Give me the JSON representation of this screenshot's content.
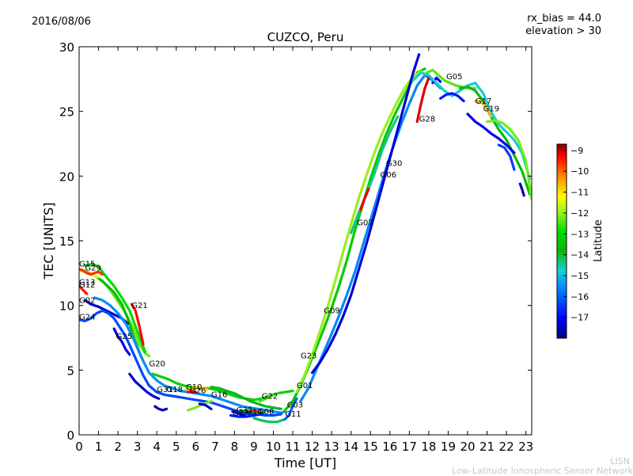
{
  "header": {
    "date": "2016/08/06",
    "bias": "rx_bias = 44.0",
    "elevation": "elevation > 30"
  },
  "footer": {
    "abbr": "LISN",
    "network": "Low-Latitude Ionospheric Sensor Network"
  },
  "colors": {
    "colormap": [
      "#00007f",
      "#0000ff",
      "#0080ff",
      "#16d2d2",
      "#0bb40b",
      "#00e000",
      "#a0f020",
      "#ffff00",
      "#ff8000",
      "#ff0000",
      "#7f0000"
    ]
  },
  "chart_data": {
    "type": "scatter",
    "title": "CUZCO, Peru",
    "xlabel": "Time [UT]",
    "ylabel": "TEC [UNITS]",
    "xlim": [
      0,
      23.3
    ],
    "ylim": [
      0,
      30
    ],
    "xticks": [
      "0",
      "1",
      "2",
      "3",
      "4",
      "5",
      "6",
      "7",
      "8",
      "9",
      "10",
      "11",
      "12",
      "13",
      "14",
      "15",
      "16",
      "17",
      "18",
      "19",
      "20",
      "21",
      "22",
      "23"
    ],
    "yticks": [
      "0",
      "5",
      "10",
      "15",
      "20",
      "25",
      "30"
    ],
    "colorbar": {
      "label": "Latitude",
      "range": [
        -18,
        -8.7
      ],
      "ticks": [
        "−9",
        "−10",
        "−11",
        "−12",
        "−13",
        "−14",
        "−15",
        "−16",
        "−17"
      ]
    },
    "satellite_labels": [
      {
        "text": "G15",
        "x": 0.0,
        "y": 13.0
      },
      {
        "text": "G29",
        "x": 0.3,
        "y": 12.7
      },
      {
        "text": "G13",
        "x": 0.0,
        "y": 11.6
      },
      {
        "text": "G12",
        "x": 0.0,
        "y": 11.4
      },
      {
        "text": "G02",
        "x": 0.0,
        "y": 10.2
      },
      {
        "text": "G24",
        "x": 0.0,
        "y": 8.9
      },
      {
        "text": "G25",
        "x": 1.9,
        "y": 7.4
      },
      {
        "text": "G21",
        "x": 2.7,
        "y": 9.8
      },
      {
        "text": "G20",
        "x": 3.6,
        "y": 5.3
      },
      {
        "text": "G31",
        "x": 4.0,
        "y": 3.3
      },
      {
        "text": "G18",
        "x": 4.5,
        "y": 3.3
      },
      {
        "text": "G26",
        "x": 5.7,
        "y": 3.2
      },
      {
        "text": "G10",
        "x": 5.5,
        "y": 3.5
      },
      {
        "text": "G16",
        "x": 6.8,
        "y": 2.9
      },
      {
        "text": "G27",
        "x": 7.9,
        "y": 1.5
      },
      {
        "text": "G32",
        "x": 8.1,
        "y": 1.7
      },
      {
        "text": "G14",
        "x": 8.6,
        "y": 1.6
      },
      {
        "text": "G08",
        "x": 9.2,
        "y": 1.6
      },
      {
        "text": "G22",
        "x": 9.4,
        "y": 2.8
      },
      {
        "text": "G11",
        "x": 10.6,
        "y": 1.4
      },
      {
        "text": "G03",
        "x": 10.7,
        "y": 2.1
      },
      {
        "text": "G01",
        "x": 11.2,
        "y": 3.6
      },
      {
        "text": "G23",
        "x": 11.4,
        "y": 5.9
      },
      {
        "text": "G09",
        "x": 12.6,
        "y": 9.4
      },
      {
        "text": "G07",
        "x": 14.3,
        "y": 16.2
      },
      {
        "text": "G06",
        "x": 15.5,
        "y": 19.9
      },
      {
        "text": "G30",
        "x": 15.8,
        "y": 20.8
      },
      {
        "text": "G28",
        "x": 17.5,
        "y": 24.2
      },
      {
        "text": "G05",
        "x": 18.9,
        "y": 27.5
      },
      {
        "text": "G17",
        "x": 20.4,
        "y": 25.6
      },
      {
        "text": "G19",
        "x": 20.8,
        "y": 25.0
      }
    ],
    "series": [
      {
        "lat": -12.3,
        "x": [
          0.0,
          0.4,
          0.8,
          1.2,
          1.6,
          2.0,
          2.4,
          2.8,
          3.1,
          3.4,
          3.6
        ],
        "y": [
          12.8,
          12.6,
          12.3,
          11.9,
          11.2,
          10.3,
          9.4,
          8.2,
          7.0,
          6.3,
          6.1
        ]
      },
      {
        "lat": -13.0,
        "x": [
          0.3,
          0.7,
          1.0,
          1.4,
          1.8,
          2.2,
          2.6,
          3.0,
          3.4
        ],
        "y": [
          13.1,
          13.2,
          13.0,
          12.2,
          11.5,
          10.6,
          9.6,
          8.0,
          6.4
        ]
      },
      {
        "lat": -13.6,
        "x": [
          1.0,
          1.4,
          1.8,
          2.2,
          2.5,
          2.8,
          3.1,
          3.3
        ],
        "y": [
          12.1,
          11.6,
          11.0,
          10.1,
          9.0,
          7.6,
          6.4,
          5.7
        ]
      },
      {
        "lat": -11.4,
        "x": [
          0.0,
          0.3,
          0.6,
          1.0
        ],
        "y": [
          12.7,
          12.6,
          12.4,
          12.2
        ]
      },
      {
        "lat": -9.6,
        "x": [
          0.0,
          0.2,
          0.4,
          0.6,
          0.8,
          1.0,
          1.2
        ],
        "y": [
          12.8,
          12.7,
          12.5,
          12.4,
          12.5,
          12.6,
          12.4
        ]
      },
      {
        "lat": -9.4,
        "x": [
          0.0,
          0.2,
          0.4
        ],
        "y": [
          11.5,
          11.2,
          10.9
        ]
      },
      {
        "lat": -17.5,
        "x": [
          0.3,
          0.6,
          1.0,
          1.4,
          1.8,
          2.2,
          2.5
        ],
        "y": [
          10.4,
          10.1,
          9.9,
          9.6,
          9.3,
          9.0,
          8.6
        ]
      },
      {
        "lat": -15.5,
        "x": [
          0.8,
          1.2,
          1.6,
          2.0,
          2.4,
          2.8,
          3.2,
          3.6,
          4.0,
          4.4,
          4.8,
          5.2,
          5.6,
          6.0,
          6.4,
          6.8,
          7.2,
          7.6,
          8.0,
          8.4,
          8.8,
          9.2,
          9.6,
          10.0,
          10.4,
          10.6
        ],
        "y": [
          10.6,
          10.4,
          10.0,
          9.4,
          8.6,
          7.4,
          6.0,
          4.8,
          4.2,
          3.8,
          3.6,
          3.4,
          3.3,
          3.2,
          3.1,
          3.0,
          2.8,
          2.6,
          2.4,
          2.2,
          2.1,
          2.0,
          1.9,
          1.8,
          1.7,
          1.8
        ]
      },
      {
        "lat": -16.3,
        "x": [
          0.0,
          0.3,
          0.6,
          0.9,
          1.2,
          1.5,
          1.8,
          2.1,
          2.4,
          2.7,
          3.0,
          3.3,
          3.6,
          4.0,
          4.4,
          4.8,
          5.2,
          5.6,
          6.0,
          6.4,
          6.8,
          7.2,
          7.6,
          8.0,
          8.4,
          8.8,
          9.2,
          9.6,
          10.0,
          10.4
        ],
        "y": [
          8.9,
          8.8,
          9.0,
          9.4,
          9.6,
          9.4,
          9.0,
          8.3,
          7.6,
          6.6,
          5.6,
          4.6,
          3.8,
          3.3,
          3.1,
          3.0,
          2.9,
          2.8,
          2.7,
          2.6,
          2.5,
          2.3,
          2.1,
          1.9,
          1.7,
          1.6,
          1.6,
          1.5,
          1.5,
          1.6
        ]
      },
      {
        "lat": -17.2,
        "x": [
          1.8,
          2.0,
          2.2,
          2.4,
          2.6
        ],
        "y": [
          8.2,
          7.6,
          7.2,
          6.6,
          6.2
        ]
      },
      {
        "lat": -9.3,
        "x": [
          2.7,
          2.9,
          3.1,
          3.3
        ],
        "y": [
          10.1,
          9.6,
          8.4,
          7.0
        ]
      },
      {
        "lat": -13.2,
        "x": [
          3.8,
          4.2,
          4.6,
          5.0,
          5.4,
          5.8,
          6.2,
          6.6,
          7.0,
          7.4,
          7.8,
          8.2,
          8.6,
          9.0,
          9.4,
          9.8,
          10.2,
          10.6,
          11.0
        ],
        "y": [
          4.7,
          4.5,
          4.3,
          4.0,
          3.8,
          3.7,
          3.6,
          3.6,
          3.5,
          3.3,
          3.1,
          2.9,
          2.8,
          2.7,
          2.8,
          3.0,
          3.2,
          3.3,
          3.4
        ]
      },
      {
        "lat": -17.6,
        "x": [
          3.9,
          4.1,
          4.3,
          4.5
        ],
        "y": [
          2.2,
          2.0,
          1.9,
          2.0
        ]
      },
      {
        "lat": -17.3,
        "x": [
          2.6,
          2.9,
          3.2,
          3.5,
          3.8,
          4.1
        ],
        "y": [
          4.7,
          4.1,
          3.7,
          3.3,
          3.0,
          2.8
        ]
      },
      {
        "lat": -10.8,
        "x": [
          5.5,
          5.8,
          6.1,
          6.4,
          6.6
        ],
        "y": [
          3.5,
          3.6,
          3.7,
          3.6,
          3.5
        ]
      },
      {
        "lat": -9.2,
        "x": [
          5.6,
          5.8,
          6.0
        ],
        "y": [
          3.3,
          3.4,
          3.3
        ]
      },
      {
        "lat": -12.2,
        "x": [
          5.6,
          6.0,
          6.4,
          6.8
        ],
        "y": [
          1.9,
          2.1,
          2.4,
          2.6
        ]
      },
      {
        "lat": -17.5,
        "x": [
          6.2,
          6.5,
          6.8
        ],
        "y": [
          2.4,
          2.3,
          2.0
        ]
      },
      {
        "lat": -13.9,
        "x": [
          6.8,
          7.2,
          7.6,
          8.0,
          8.4,
          8.8,
          9.2,
          9.6,
          10.0,
          10.4
        ],
        "y": [
          3.7,
          3.6,
          3.4,
          3.2,
          2.9,
          2.6,
          2.4,
          2.2,
          2.1,
          2.0
        ]
      },
      {
        "lat": -16.8,
        "x": [
          7.8,
          8.2,
          8.6,
          9.0,
          9.4
        ],
        "y": [
          1.5,
          1.4,
          1.4,
          1.5,
          1.6
        ]
      },
      {
        "lat": -17.1,
        "x": [
          7.9,
          8.1,
          8.3,
          8.5
        ],
        "y": [
          1.8,
          1.7,
          1.6,
          1.5
        ]
      },
      {
        "lat": -13.8,
        "x": [
          8.3,
          8.6,
          8.9,
          9.2,
          9.5
        ],
        "y": [
          1.9,
          1.8,
          1.8,
          1.7,
          1.7
        ]
      },
      {
        "lat": -9.4,
        "x": [
          8.8,
          9.0,
          9.2
        ],
        "y": [
          1.8,
          1.9,
          1.8
        ]
      },
      {
        "lat": -12.5,
        "x": [
          9.3,
          9.6,
          9.9,
          10.2
        ],
        "y": [
          2.6,
          2.8,
          3.0,
          3.2
        ]
      },
      {
        "lat": -14.2,
        "x": [
          9.0,
          9.4,
          9.8,
          10.2,
          10.6
        ],
        "y": [
          1.3,
          1.1,
          1.0,
          1.0,
          1.2
        ]
      },
      {
        "lat": -16.0,
        "x": [
          10.6,
          10.8,
          11.0,
          11.2
        ],
        "y": [
          1.2,
          1.5,
          2.2,
          2.8
        ]
      },
      {
        "lat": -13.4,
        "x": [
          10.6,
          11.0,
          11.4,
          11.8,
          12.2,
          12.6,
          13.0,
          13.4,
          13.8,
          14.2,
          14.6,
          15.0,
          15.4,
          15.8,
          16.2,
          16.6,
          17.0,
          17.4,
          17.8
        ],
        "y": [
          1.9,
          2.6,
          3.8,
          5.2,
          6.7,
          8.2,
          9.8,
          11.6,
          13.6,
          15.8,
          17.8,
          19.8,
          21.6,
          23.2,
          24.6,
          25.8,
          27.0,
          28.0,
          28.3
        ]
      },
      {
        "lat": -12.0,
        "x": [
          11.2,
          11.6,
          12.0,
          12.4,
          12.8,
          13.2,
          13.6,
          14.0,
          14.4,
          14.8,
          15.2,
          15.6,
          16.0,
          16.4,
          16.8,
          17.2,
          17.6
        ],
        "y": [
          3.3,
          4.6,
          6.2,
          8.0,
          9.9,
          12.0,
          14.2,
          16.3,
          18.3,
          20.1,
          21.8,
          23.3,
          24.6,
          25.8,
          26.9,
          27.7,
          28.1
        ]
      },
      {
        "lat": -15.6,
        "x": [
          11.4,
          11.8,
          12.2,
          12.6,
          13.0,
          13.4,
          13.8,
          14.2,
          14.6,
          15.0,
          15.4,
          15.8,
          16.2,
          16.6,
          17.0,
          17.4,
          17.8,
          18.2,
          18.6
        ],
        "y": [
          2.6,
          3.6,
          5.0,
          6.4,
          7.8,
          9.3,
          10.9,
          12.6,
          14.6,
          16.6,
          18.6,
          20.6,
          22.4,
          24.1,
          25.6,
          27.0,
          27.8,
          27.4,
          26.8
        ]
      },
      {
        "lat": -17.4,
        "x": [
          12.0,
          12.4,
          12.8,
          13.2,
          13.6,
          14.0,
          14.4,
          14.8,
          15.2,
          15.6,
          16.0,
          16.4,
          16.8,
          17.2,
          17.5
        ],
        "y": [
          4.8,
          5.6,
          6.6,
          7.8,
          9.2,
          10.8,
          12.8,
          14.8,
          17.0,
          19.2,
          21.4,
          23.6,
          25.8,
          28.0,
          29.4
        ]
      },
      {
        "lat": -14.4,
        "x": [
          14.0,
          14.4,
          14.8,
          15.2,
          15.6,
          16.0,
          16.4
        ],
        "y": [
          15.6,
          17.2,
          18.6,
          20.2,
          22.0,
          23.4,
          24.6
        ]
      },
      {
        "lat": -9.2,
        "x": [
          14.5,
          14.7,
          14.9
        ],
        "y": [
          17.4,
          18.3,
          19.0
        ]
      },
      {
        "lat": -9.1,
        "x": [
          17.4,
          17.6,
          17.8,
          18.0
        ],
        "y": [
          24.2,
          25.6,
          26.8,
          27.6
        ]
      },
      {
        "lat": -17.2,
        "x": [
          18.2,
          18.4,
          18.6
        ],
        "y": [
          27.2,
          27.6,
          27.3
        ]
      },
      {
        "lat": -12.4,
        "x": [
          17.9,
          18.2,
          18.5,
          18.8,
          19.1,
          19.4,
          19.7,
          20.0,
          20.4
        ],
        "y": [
          28.0,
          28.2,
          27.8,
          27.4,
          27.2,
          27.0,
          26.9,
          26.8,
          26.8
        ]
      },
      {
        "lat": -14.8,
        "x": [
          17.2,
          17.6,
          18.0,
          18.4,
          18.8,
          19.2,
          19.6,
          20.0,
          20.4,
          20.8,
          21.2,
          21.6,
          22.0,
          22.4,
          22.8,
          23.2
        ],
        "y": [
          27.4,
          28.0,
          27.8,
          27.2,
          26.6,
          26.2,
          26.6,
          27.0,
          27.2,
          26.4,
          25.0,
          24.0,
          23.4,
          22.8,
          21.8,
          19.8
        ]
      },
      {
        "lat": -16.8,
        "x": [
          18.6,
          18.9,
          19.2,
          19.5,
          19.8
        ],
        "y": [
          26.0,
          26.3,
          26.4,
          26.2,
          25.8
        ]
      },
      {
        "lat": -13.7,
        "x": [
          19.6,
          20.0,
          20.4,
          20.8,
          21.2,
          21.6,
          22.0,
          22.4,
          22.8,
          23.2
        ],
        "y": [
          26.8,
          26.9,
          26.6,
          25.8,
          24.6,
          23.6,
          22.8,
          21.6,
          20.4,
          18.6
        ]
      },
      {
        "lat": -10.6,
        "x": [
          20.4,
          20.7,
          21.0,
          21.2
        ],
        "y": [
          25.8,
          25.7,
          25.3,
          24.6
        ]
      },
      {
        "lat": -12.2,
        "x": [
          21.0,
          21.4,
          21.8,
          22.2,
          22.6,
          23.0,
          23.3
        ],
        "y": [
          24.2,
          24.3,
          24.1,
          23.6,
          22.8,
          21.2,
          18.2
        ]
      },
      {
        "lat": -17.2,
        "x": [
          20.0,
          20.4,
          20.8,
          21.2,
          21.6,
          22.0,
          22.4
        ],
        "y": [
          24.8,
          24.2,
          23.8,
          23.3,
          22.9,
          22.4,
          21.8
        ]
      },
      {
        "lat": -16.4,
        "x": [
          21.6,
          21.9,
          22.2,
          22.4
        ],
        "y": [
          22.4,
          22.2,
          21.5,
          20.5
        ]
      },
      {
        "lat": -17.6,
        "x": [
          22.7,
          22.8,
          22.9
        ],
        "y": [
          19.4,
          19.0,
          18.5
        ]
      }
    ]
  }
}
